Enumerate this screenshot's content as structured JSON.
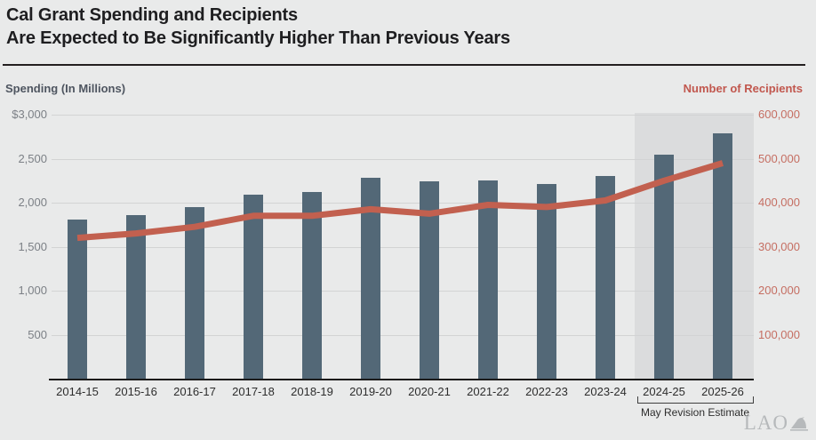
{
  "header": {
    "title_line1": "Cal Grant Spending and Recipients",
    "title_line2": "Are Expected to Be Significantly Higher Than Previous Years"
  },
  "chart_data": {
    "type": "bar",
    "subtype": "combo-bar-line-dual-axis",
    "categories": [
      "2014-15",
      "2015-16",
      "2016-17",
      "2017-18",
      "2018-19",
      "2019-20",
      "2020-21",
      "2021-22",
      "2022-23",
      "2023-24",
      "2024-25",
      "2025-26"
    ],
    "series": [
      {
        "name": "Spending (In Millions)",
        "type": "bar",
        "axis": "left",
        "color": "#536877",
        "values": [
          1810,
          1860,
          1950,
          2090,
          2120,
          2280,
          2240,
          2250,
          2210,
          2300,
          2550,
          2790
        ]
      },
      {
        "name": "Number of Recipients",
        "type": "line",
        "axis": "right",
        "color": "#c2604f",
        "values": [
          320000,
          330000,
          345000,
          370000,
          370000,
          385000,
          375000,
          395000,
          390000,
          405000,
          450000,
          490000
        ]
      }
    ],
    "left_axis": {
      "title": "Spending (In Millions)",
      "tick_labels": [
        "$3,000",
        "2,500",
        "2,000",
        "1,500",
        "1,000",
        "500"
      ],
      "tick_values": [
        3000,
        2500,
        2000,
        1500,
        1000,
        500
      ],
      "min": 0,
      "max": 3000
    },
    "right_axis": {
      "title": "Number of Recipients",
      "tick_labels": [
        "600,000",
        "500,000",
        "400,000",
        "300,000",
        "200,000",
        "100,000"
      ],
      "tick_values": [
        600000,
        500000,
        400000,
        300000,
        200000,
        100000
      ],
      "min": 0,
      "max": 600000
    },
    "highlight": {
      "categories": [
        "2024-25",
        "2025-26"
      ],
      "label": "May Revision Estimate"
    },
    "grid": true,
    "legend": "none"
  },
  "colors": {
    "background": "#e9eaea",
    "highlight_shade": "#dbdcdd",
    "bar": "#536877",
    "line": "#c2604f",
    "gridline": "#d2d3d4",
    "title_text": "#1e1e20",
    "left_axis_text": "#7c8086",
    "right_axis_text": "#c56e62"
  },
  "logo": {
    "text": "LAO"
  }
}
